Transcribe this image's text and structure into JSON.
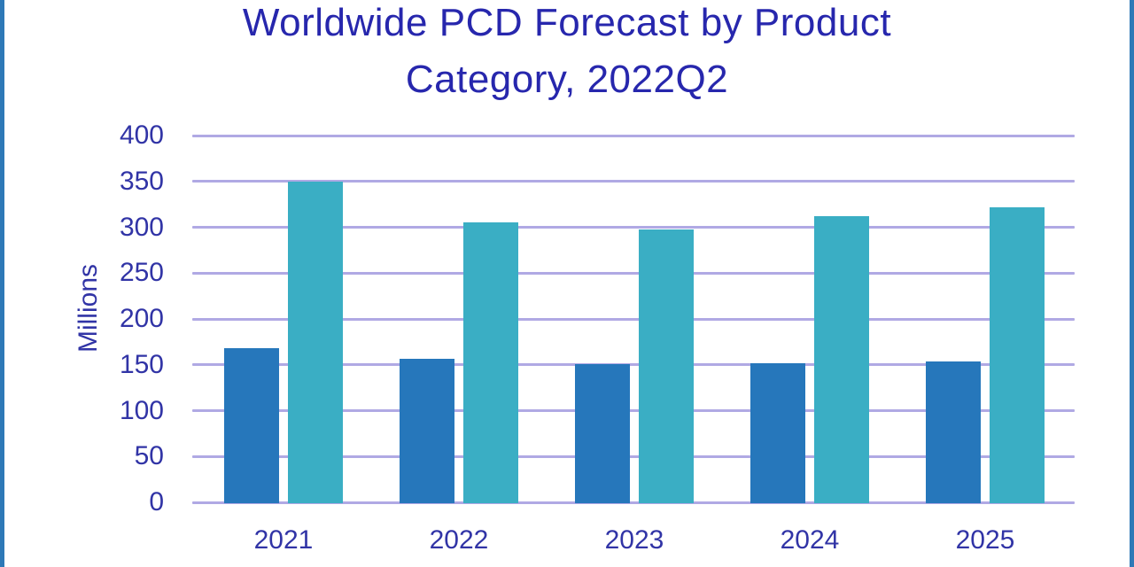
{
  "colors": {
    "background": "#ffffff",
    "frame_border": "#2e79b7",
    "gridline": "#b0a9e4",
    "title_text": "#2727ad",
    "axis_text": "#3134a6",
    "bar_dark_blue": "#2677bb",
    "bar_teal": "#3aaec4"
  },
  "chart_data": {
    "type": "bar",
    "title": "Worldwide PCD Forecast by Product Category, 2022Q2",
    "title_lines": [
      "Worldwide PCD Forecast by Product",
      "Category, 2022Q2"
    ],
    "xlabel": "",
    "ylabel": "Millions",
    "categories": [
      "2021",
      "2022",
      "2023",
      "2024",
      "2025"
    ],
    "series": [
      {
        "name": "dark-blue-series",
        "color": "#2677bb",
        "values": [
          168,
          157,
          151,
          152,
          154
        ]
      },
      {
        "name": "teal-series",
        "color": "#3aaec4",
        "values": [
          350,
          305,
          298,
          312,
          322
        ]
      }
    ],
    "ylim": [
      0,
      400
    ],
    "ytick_step": 50,
    "yticks": [
      "0",
      "50",
      "100",
      "150",
      "200",
      "250",
      "300",
      "350",
      "400"
    ],
    "grid": true,
    "legend_position": "none-visible"
  }
}
